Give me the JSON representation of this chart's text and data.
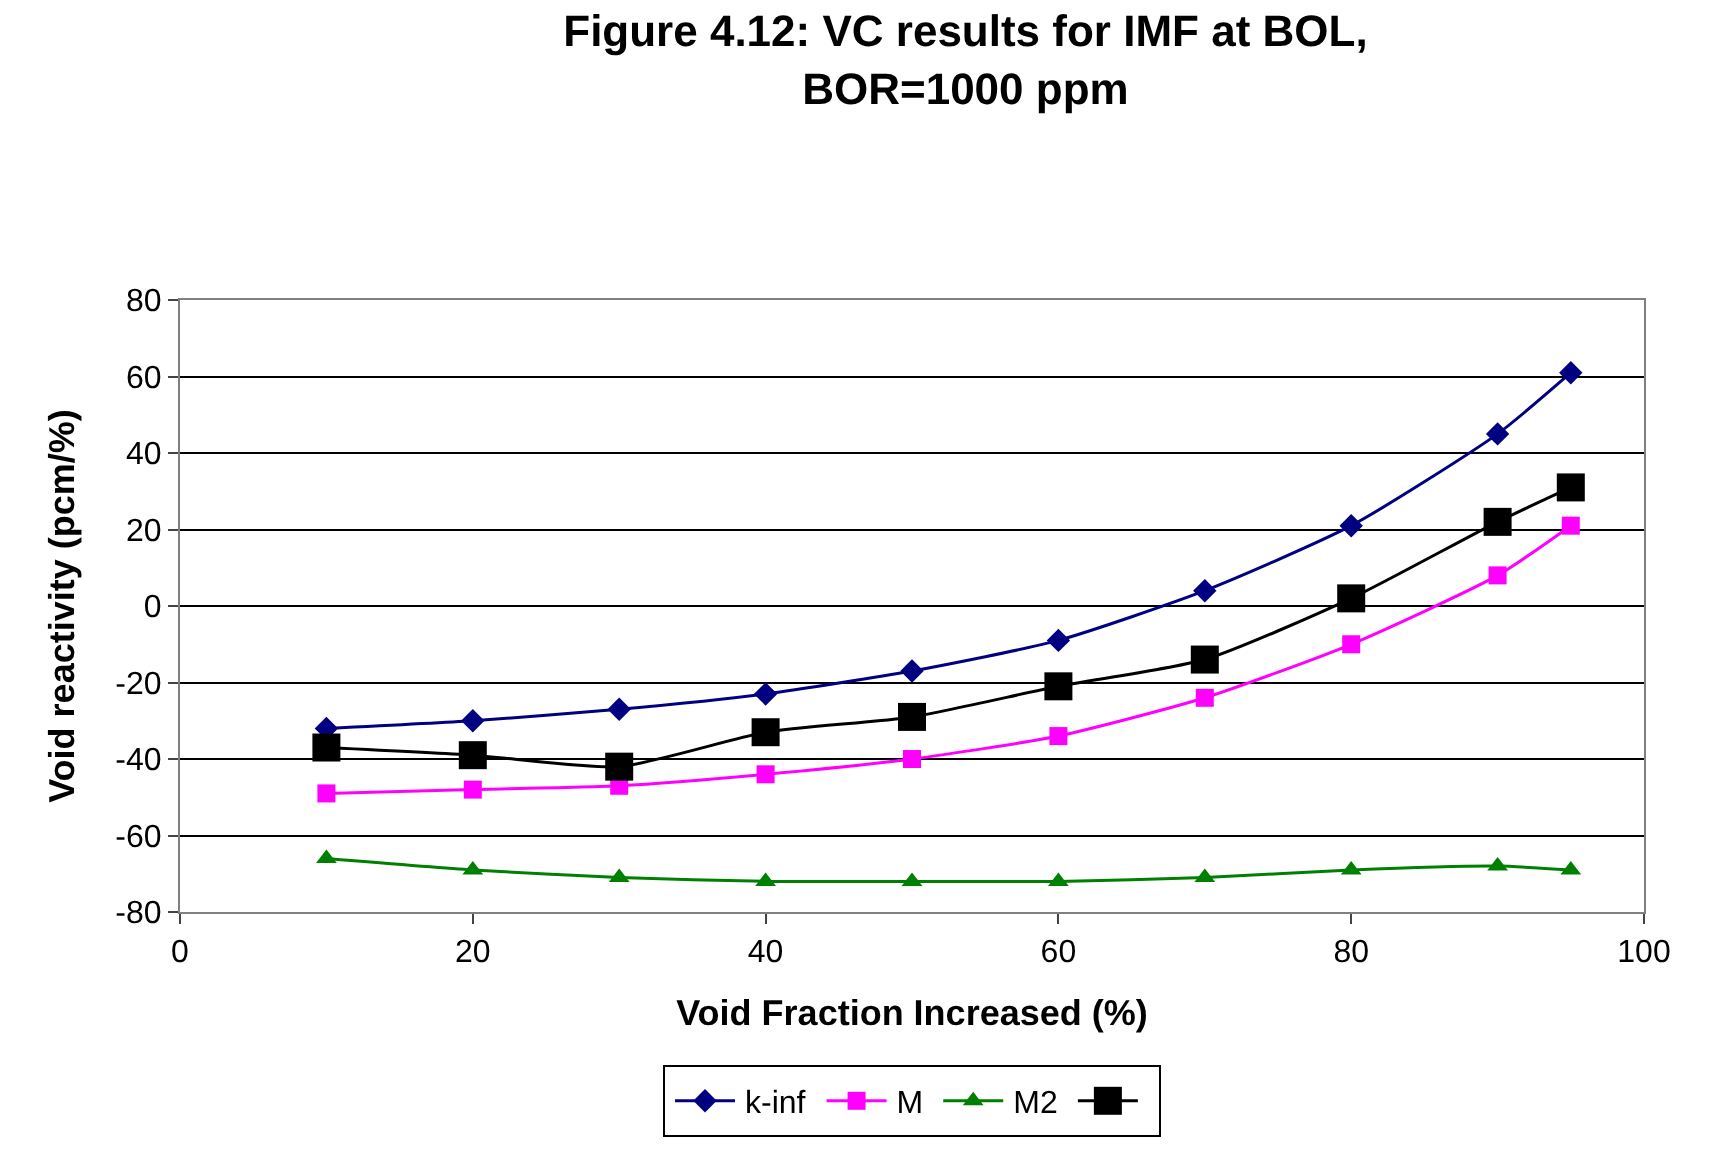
{
  "chart_data": {
    "type": "line",
    "title": "Figure 4.12: VC results for IMF at BOL,\nBOR=1000 ppm",
    "xlabel": "Void Fraction Increased (%)",
    "ylabel": "Void reactivity (pcm/%)",
    "x": [
      10,
      20,
      30,
      40,
      50,
      60,
      70,
      80,
      90,
      95
    ],
    "series": [
      {
        "name": "k-inf",
        "color": "#000080",
        "marker": "diamond",
        "values": [
          -32,
          -30,
          -27,
          -23,
          -17,
          -9,
          4,
          21,
          45,
          61
        ]
      },
      {
        "name": "M",
        "color": "#ff00ff",
        "marker": "square",
        "values": [
          -49,
          -48,
          -47,
          -44,
          -40,
          -34,
          -24,
          -10,
          8,
          21
        ]
      },
      {
        "name": "M2",
        "color": "#008000",
        "marker": "triangle",
        "values": [
          -66,
          -69,
          -71,
          -72,
          -72,
          -72,
          -71,
          -69,
          -68,
          -69
        ]
      },
      {
        "color": "#000000",
        "marker": "square",
        "values": [
          -37,
          -39,
          -42,
          -33,
          -29,
          -21,
          -14,
          2,
          22,
          31
        ]
      }
    ],
    "xlim": [
      0,
      100
    ],
    "xticks": [
      0,
      20,
      40,
      60,
      80,
      100
    ],
    "ylim": [
      -80,
      80
    ],
    "yticks": [
      -80,
      -60,
      -40,
      -20,
      0,
      20,
      40,
      60,
      80
    ],
    "grid": "y",
    "legend": "bottom",
    "line_style": "solid"
  }
}
